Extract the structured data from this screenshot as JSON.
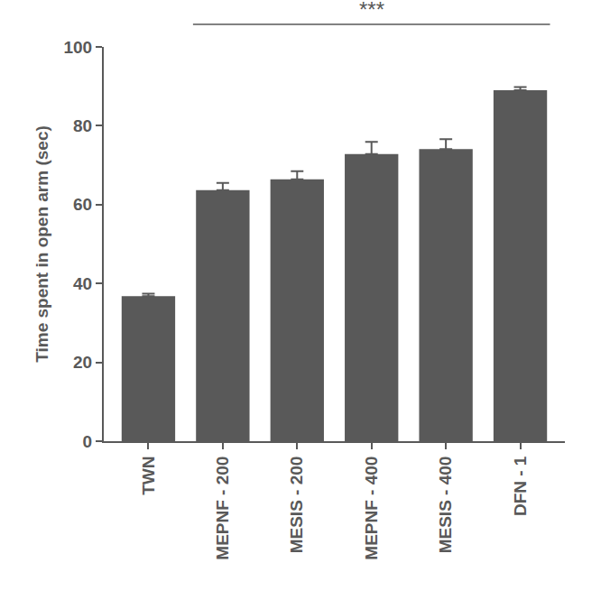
{
  "chart_data": {
    "type": "bar",
    "y_label": "Time spent in open arm (sec)",
    "categories": [
      "TWN",
      "MEPNF - 200",
      "MESIS - 200",
      "MEPNF - 400",
      "MESIS - 400",
      "DFN - 1"
    ],
    "values": [
      36.8,
      63.7,
      66.4,
      72.8,
      74.1,
      89.0
    ],
    "error": [
      0.6,
      1.8,
      2.1,
      3.1,
      2.5,
      0.8
    ],
    "color": "#595959",
    "ylim": [
      0,
      100
    ],
    "yticks": [
      0,
      20,
      40,
      60,
      80,
      100
    ],
    "grid": false,
    "significance": {
      "text": "***",
      "from": "MEPNF - 200",
      "to": "DFN - 1"
    }
  }
}
